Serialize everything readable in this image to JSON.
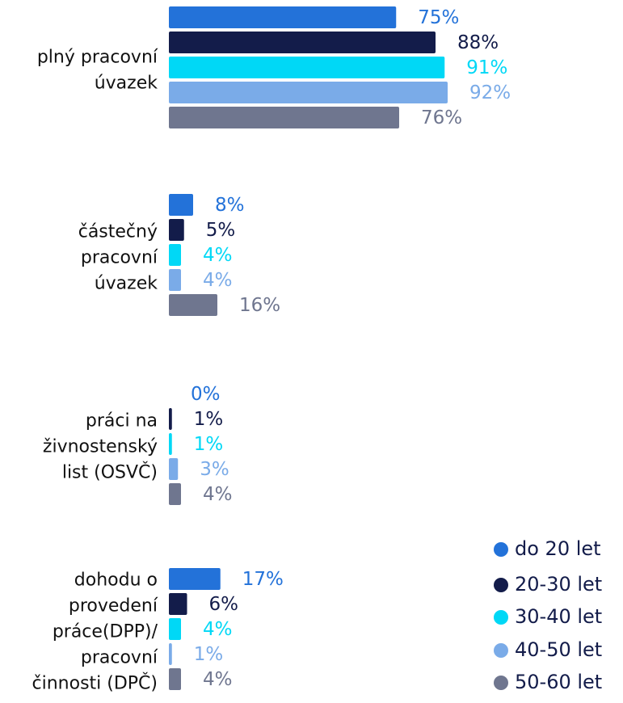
{
  "chart_data": {
    "type": "hbar",
    "categories": [
      [
        "plný pracovní",
        "úvazek"
      ],
      [
        "částečný",
        "pracovní",
        "úvazek"
      ],
      [
        "práci na",
        "živnostenský",
        "list (OSVČ)"
      ],
      [
        "dohodu o",
        "provedení",
        "práce(DPP)/",
        "pracovní",
        "činnosti (DPČ)"
      ]
    ],
    "series": [
      {
        "name": "do 20 let",
        "color": "#2372d9",
        "values": [
          75,
          8,
          0,
          17
        ],
        "value_labels": [
          "75%",
          "8%",
          "0%",
          "17%"
        ]
      },
      {
        "name": "20-30 let",
        "color": "#131c4a",
        "values": [
          88,
          5,
          1,
          6
        ],
        "value_labels": [
          "88%",
          "5%",
          "1%",
          "6%"
        ]
      },
      {
        "name": "30-40 let",
        "color": "#00d8f6",
        "values": [
          91,
          4,
          1,
          4
        ],
        "value_labels": [
          "91%",
          "4%",
          "1%",
          "4%"
        ]
      },
      {
        "name": "40-50 let",
        "color": "#7aabe8",
        "values": [
          92,
          4,
          3,
          1
        ],
        "value_labels": [
          "92%",
          "4%",
          "3%",
          "1%"
        ]
      },
      {
        "name": "50-60 let",
        "color": "#6f768f",
        "values": [
          76,
          16,
          4,
          4
        ],
        "value_labels": [
          "76%",
          "16%",
          "4%",
          "4%"
        ]
      }
    ],
    "xlim": [
      0,
      100
    ],
    "legend": "bottom-right"
  }
}
